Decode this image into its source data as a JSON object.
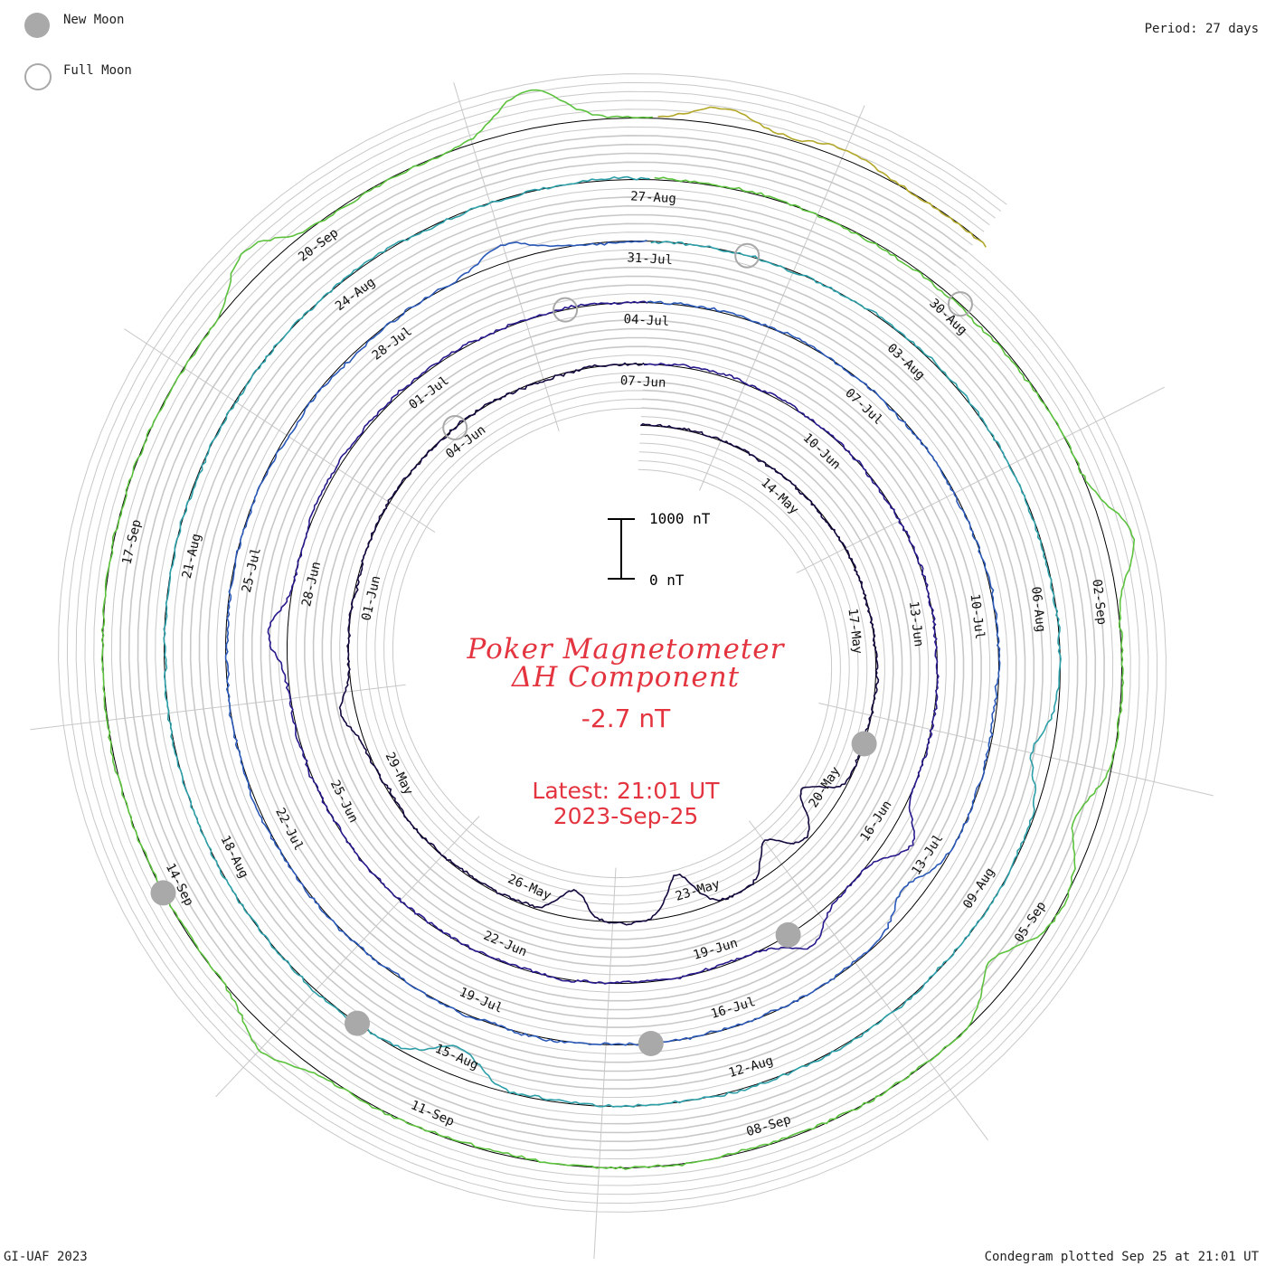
{
  "legend": {
    "new_moon_label": "New Moon",
    "full_moon_label": "Full Moon",
    "new_moon_color": "#a9a9a9",
    "full_moon_color": "#a9a9a9"
  },
  "period_label": "Period: 27 days",
  "credit": "GI-UAF 2023",
  "plotted_label": "Condegram plotted Sep 25 at 21:01 UT",
  "title_line1": "Poker Magnetometer",
  "title_line2": "ΔH Component",
  "current_value": "-2.7 nT",
  "latest_time": "Latest: 21:01 UT",
  "latest_date": "2023-Sep-25",
  "scale": {
    "top_label": "1000 nT",
    "bottom_label": "0 nT"
  },
  "accent_color": "#e4343f",
  "chart_data": {
    "type": "line",
    "layout": "condegram spiral",
    "period_days": 27,
    "start_date": "2023-05-11",
    "end_date": "2023-09-25",
    "units": "nT",
    "colors": [
      "#14083e",
      "#271a8c",
      "#2b59b8",
      "#2c9fa8",
      "#5cc23e",
      "#b3a82a",
      "#c2790f",
      "#b11613"
    ],
    "date_labels": [
      {
        "text": "14-May",
        "day": 3
      },
      {
        "text": "17-May",
        "day": 6
      },
      {
        "text": "20-May",
        "day": 9
      },
      {
        "text": "23-May",
        "day": 12
      },
      {
        "text": "26-May",
        "day": 15
      },
      {
        "text": "29-May",
        "day": 18
      },
      {
        "text": "01-Jun",
        "day": 21
      },
      {
        "text": "04-Jun",
        "day": 24
      },
      {
        "text": "07-Jun",
        "day": 27
      },
      {
        "text": "10-Jun",
        "day": 30
      },
      {
        "text": "13-Jun",
        "day": 33
      },
      {
        "text": "16-Jun",
        "day": 36
      },
      {
        "text": "19-Jun",
        "day": 39
      },
      {
        "text": "22-Jun",
        "day": 42
      },
      {
        "text": "25-Jun",
        "day": 45
      },
      {
        "text": "28-Jun",
        "day": 48
      },
      {
        "text": "01-Jul",
        "day": 51
      },
      {
        "text": "04-Jul",
        "day": 54
      },
      {
        "text": "07-Jul",
        "day": 57
      },
      {
        "text": "10-Jul",
        "day": 60
      },
      {
        "text": "13-Jul",
        "day": 63
      },
      {
        "text": "16-Jul",
        "day": 66
      },
      {
        "text": "19-Jul",
        "day": 69
      },
      {
        "text": "22-Jul",
        "day": 72
      },
      {
        "text": "25-Jul",
        "day": 75
      },
      {
        "text": "28-Jul",
        "day": 78
      },
      {
        "text": "31-Jul",
        "day": 81
      },
      {
        "text": "03-Aug",
        "day": 84
      },
      {
        "text": "06-Aug",
        "day": 87
      },
      {
        "text": "09-Aug",
        "day": 90
      },
      {
        "text": "12-Aug",
        "day": 93
      },
      {
        "text": "15-Aug",
        "day": 96
      },
      {
        "text": "18-Aug",
        "day": 99
      },
      {
        "text": "21-Aug",
        "day": 102
      },
      {
        "text": "24-Aug",
        "day": 105
      },
      {
        "text": "27-Aug",
        "day": 108
      },
      {
        "text": "30-Aug",
        "day": 111
      },
      {
        "text": "02-Sep",
        "day": 114
      },
      {
        "text": "05-Sep",
        "day": 117
      },
      {
        "text": "08-Sep",
        "day": 120
      },
      {
        "text": "11-Sep",
        "day": 123
      },
      {
        "text": "14-Sep",
        "day": 126
      },
      {
        "text": "17-Sep",
        "day": 129
      },
      {
        "text": "20-Sep",
        "day": 132
      }
    ],
    "new_moons_day": [
      8,
      38,
      67,
      97,
      126
    ],
    "full_moons_day": [
      24,
      53,
      82,
      111
    ],
    "disturbances": [
      {
        "day": 9.3,
        "value": -620
      },
      {
        "day": 10.5,
        "value": -480
      },
      {
        "day": 12.3,
        "value": -700
      },
      {
        "day": 14.2,
        "value": -480
      },
      {
        "day": 19.2,
        "value": 250
      },
      {
        "day": 36.0,
        "value": 420
      },
      {
        "day": 37.8,
        "value": 380
      },
      {
        "day": 47.3,
        "value": 300
      },
      {
        "day": 63.5,
        "value": -280
      },
      {
        "day": 79.5,
        "value": 280
      },
      {
        "day": 88.5,
        "value": -300
      },
      {
        "day": 96.0,
        "value": -450
      },
      {
        "day": 113.5,
        "value": 500
      },
      {
        "day": 116.0,
        "value": -380
      },
      {
        "day": 117.5,
        "value": -480
      },
      {
        "day": 124.5,
        "value": 350
      },
      {
        "day": 131.5,
        "value": 480
      },
      {
        "day": 134.0,
        "value": 620
      },
      {
        "day": 135.5,
        "value": 280
      },
      {
        "day": 136.5,
        "value": 180
      }
    ]
  }
}
